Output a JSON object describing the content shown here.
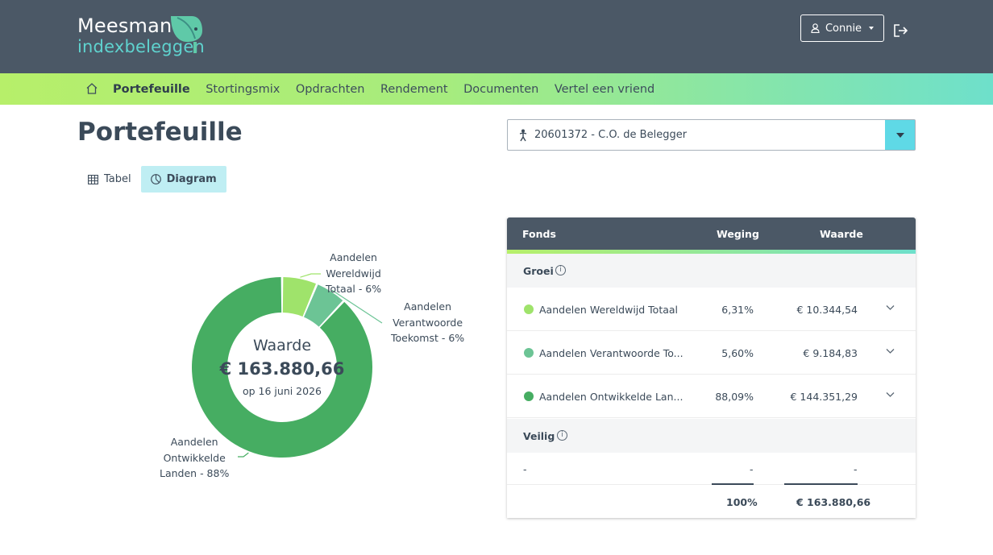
{
  "header": {
    "logo_name": "Meesman",
    "logo_sub": "indexbeleggen",
    "user_label": "Connie"
  },
  "nav": {
    "items": [
      {
        "label": "Portefeuille",
        "active": true
      },
      {
        "label": "Stortingsmix",
        "active": false
      },
      {
        "label": "Opdrachten",
        "active": false
      },
      {
        "label": "Rendement",
        "active": false
      },
      {
        "label": "Documenten",
        "active": false
      },
      {
        "label": "Vertel een vriend",
        "active": false
      }
    ]
  },
  "page": {
    "title": "Portefeuille",
    "account": "20601372 - C.O. de Belegger"
  },
  "view_toggle": {
    "table_label": "Tabel",
    "chart_label": "Diagram",
    "selected": "Diagram"
  },
  "donut": {
    "center_label": "Waarde",
    "center_value": "€ 163.880,66",
    "center_date": "op 16 juni 2026",
    "slices": [
      {
        "label_lines": [
          "Aandelen",
          "Wereldwijd",
          "Totaal - 6%"
        ],
        "percent": 6.31,
        "color": "#9fe36b"
      },
      {
        "label_lines": [
          "Aandelen",
          "Verantwoorde",
          "Toekomst - 6%"
        ],
        "percent": 5.6,
        "color": "#6cc495"
      },
      {
        "label_lines": [
          "Aandelen",
          "Ontwikkelde",
          "Landen - 88%"
        ],
        "percent": 88.09,
        "color": "#46ad62"
      }
    ]
  },
  "table": {
    "headers": {
      "fund": "Fonds",
      "weight": "Weging",
      "value": "Waarde"
    },
    "groups": [
      {
        "name": "Groei",
        "rows": [
          {
            "name": "Aandelen Wereldwijd Totaal",
            "weight": "6,31%",
            "value": "€ 10.344,54",
            "color": "#9fe36b"
          },
          {
            "name": "Aandelen Verantwoorde To...",
            "weight": "5,60%",
            "value": "€ 9.184,83",
            "color": "#6cc495"
          },
          {
            "name": "Aandelen Ontwikkelde Lan...",
            "weight": "88,09%",
            "value": "€ 144.351,29",
            "color": "#46ad62"
          }
        ]
      },
      {
        "name": "Veilig",
        "rows": [
          {
            "name": "-",
            "weight": "-",
            "value": "-"
          }
        ]
      }
    ],
    "total": {
      "weight": "100%",
      "value": "€ 163.880,66"
    }
  }
}
